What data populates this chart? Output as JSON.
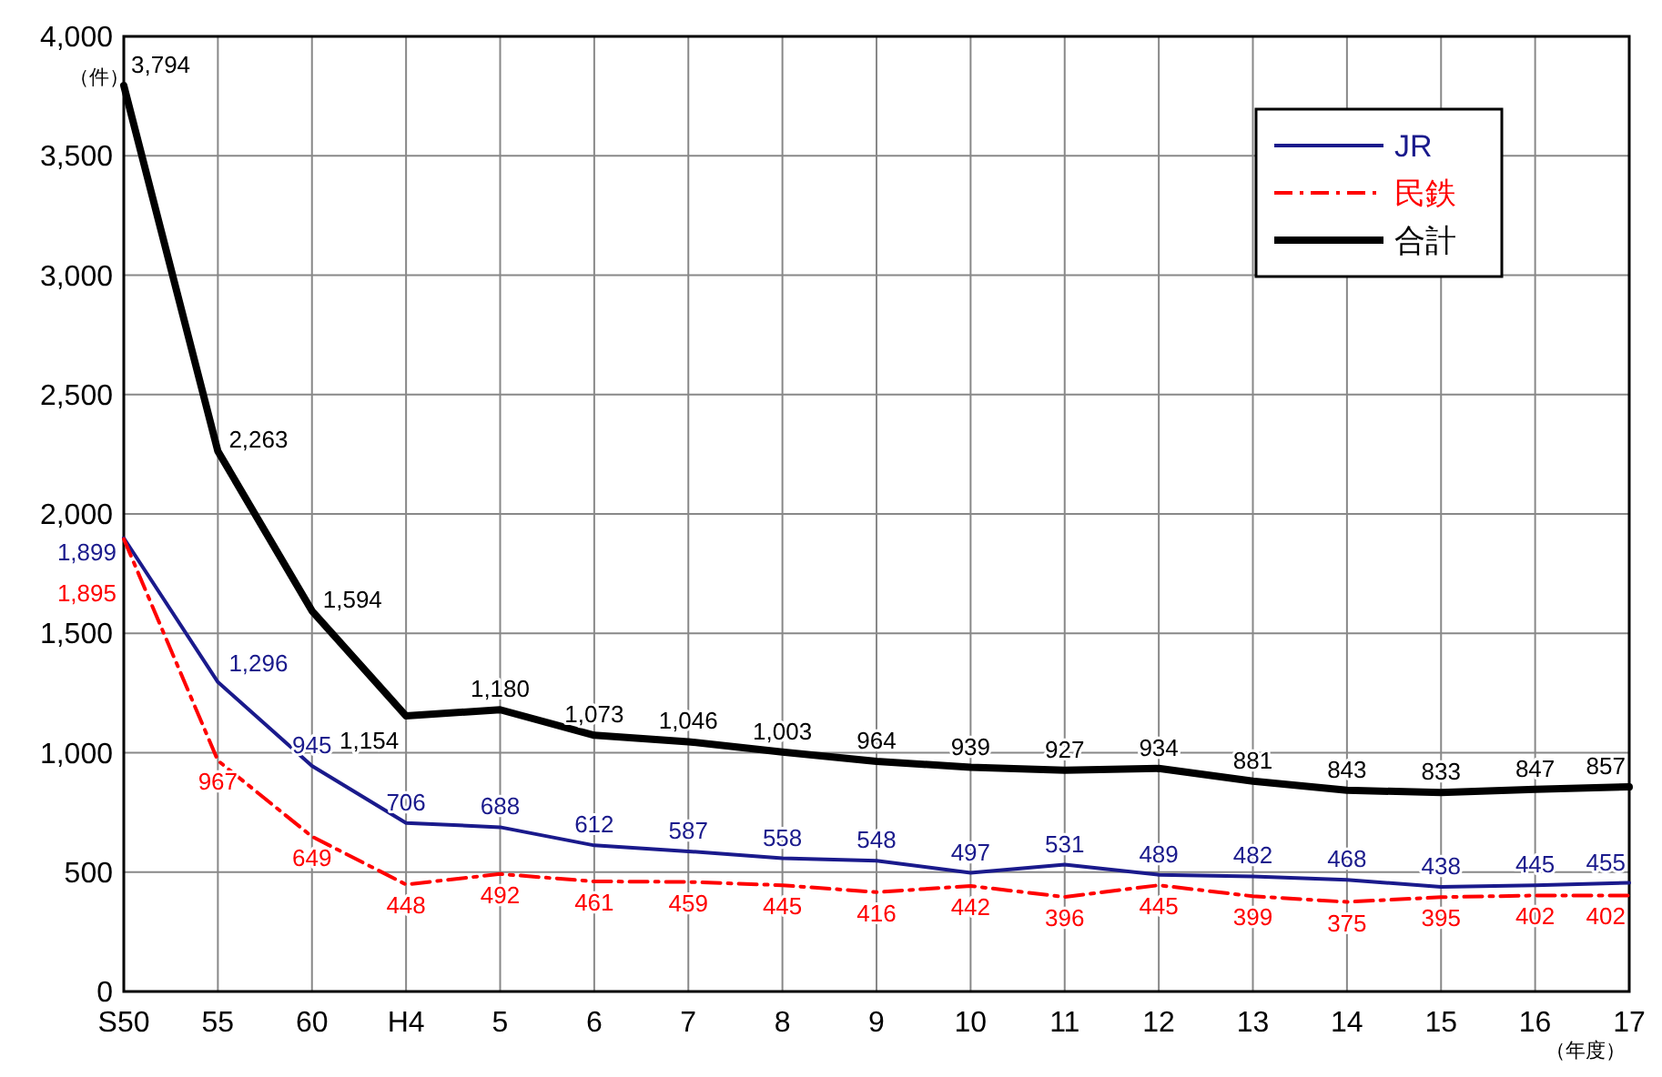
{
  "chart_data": {
    "type": "line",
    "ylabel": "（件）",
    "xlabel": "（年度）",
    "categories": [
      "S50",
      "55",
      "60",
      "H4",
      "5",
      "6",
      "7",
      "8",
      "9",
      "10",
      "11",
      "12",
      "13",
      "14",
      "15",
      "16",
      "17"
    ],
    "series": [
      {
        "name": "JR",
        "color": "#1a1a8c",
        "line_style": "solid",
        "value_labels": [
          "1,899",
          "1,296",
          "945",
          "706",
          "688",
          "612",
          "587",
          "558",
          "548",
          "497",
          "531",
          "489",
          "482",
          "468",
          "438",
          "445",
          "455"
        ],
        "values": [
          1899,
          1296,
          945,
          706,
          688,
          612,
          587,
          558,
          548,
          497,
          531,
          489,
          482,
          468,
          438,
          445,
          455
        ]
      },
      {
        "name": "民鉄",
        "color": "#ff0000",
        "line_style": "dashed",
        "value_labels": [
          "1,895",
          "967",
          "649",
          "448",
          "492",
          "461",
          "459",
          "445",
          "416",
          "442",
          "396",
          "445",
          "399",
          "375",
          "395",
          "402",
          "402"
        ],
        "values": [
          1895,
          967,
          649,
          448,
          492,
          461,
          459,
          445,
          416,
          442,
          396,
          445,
          399,
          375,
          395,
          402,
          402
        ]
      },
      {
        "name": "合計",
        "color": "#000000",
        "line_style": "solid",
        "value_labels": [
          "3,794",
          "2,263",
          "1,594",
          "1,154",
          "1,180",
          "1,073",
          "1,046",
          "1,003",
          "964",
          "939",
          "927",
          "934",
          "881",
          "843",
          "833",
          "847",
          "857"
        ],
        "values": [
          3794,
          2263,
          1594,
          1154,
          1180,
          1073,
          1046,
          1003,
          964,
          939,
          927,
          934,
          881,
          843,
          833,
          847,
          857
        ]
      }
    ],
    "ylim": [
      0,
      4000
    ],
    "yticks": [
      {
        "value": 0,
        "label": "0"
      },
      {
        "value": 500,
        "label": "500"
      },
      {
        "value": 1000,
        "label": "1,000"
      },
      {
        "value": 1500,
        "label": "1,500"
      },
      {
        "value": 2000,
        "label": "2,000"
      },
      {
        "value": 2500,
        "label": "2,500"
      },
      {
        "value": 3000,
        "label": "3,000"
      },
      {
        "value": 3500,
        "label": "3,500"
      },
      {
        "value": 4000,
        "label": "4,000"
      }
    ],
    "grid": true,
    "legend": "top right"
  }
}
